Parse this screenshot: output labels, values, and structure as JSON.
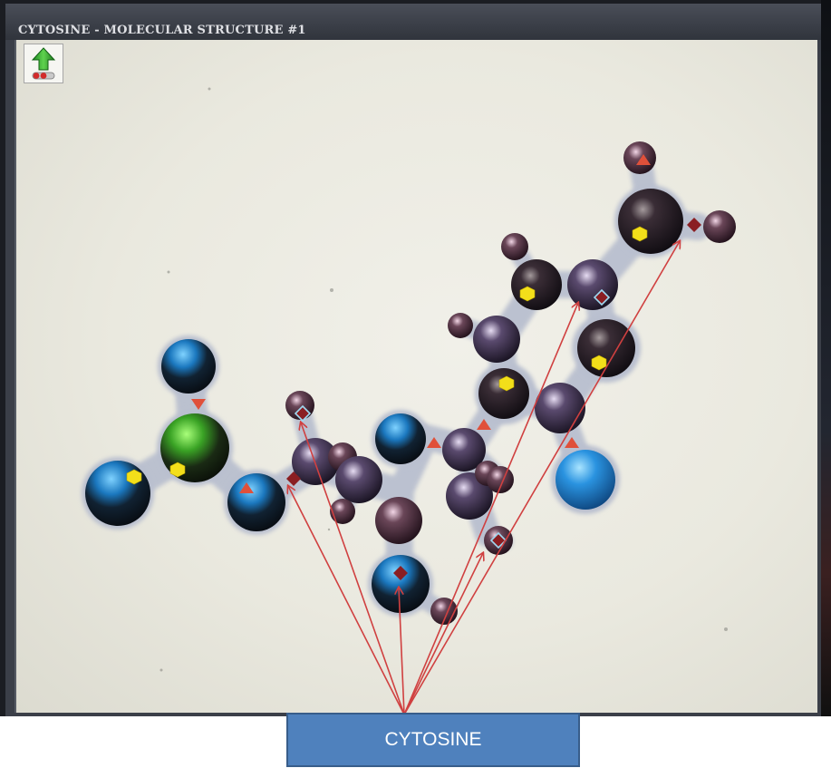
{
  "window": {
    "title": "CYTOSINE - MOLECULAR STRUCTURE #1"
  },
  "toolbar": {
    "back_icon": "up-arrow-toggle-icon"
  },
  "molecule": {
    "colors": {
      "dark_atom": "#2a1f2a",
      "purple_atom": "#6e5d86",
      "blue_atom": "#2f8fd8",
      "green_atom": "#3fbf2a",
      "bond": "#b6bccb",
      "hexagon": "#f3df1a",
      "triangle": "#e0503a",
      "diamond": "#8a1e22"
    }
  },
  "annotation": {
    "label": "CYTOSINE",
    "arrow_color": "#d04040",
    "box_color": "#4f81bd"
  }
}
